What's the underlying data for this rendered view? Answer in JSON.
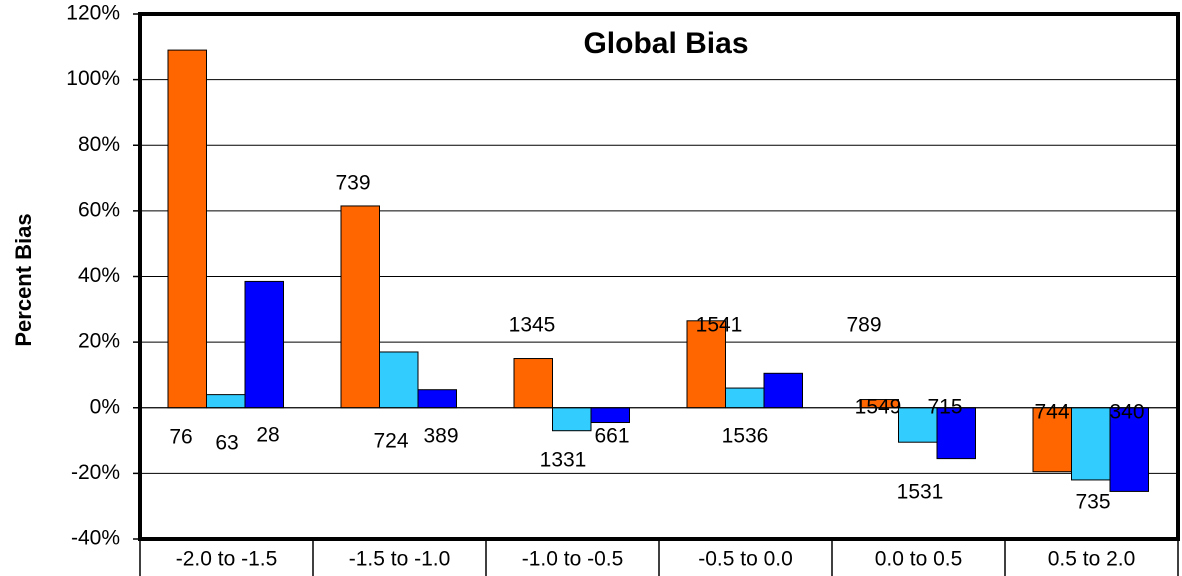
{
  "chart_data": {
    "type": "bar",
    "title": "Global Bias",
    "y_label": "Percent Bias",
    "categories": [
      "-2.0 to -1.5",
      "-1.5 to -1.0",
      "-1.0 to -0.5",
      "-0.5 to 0.0",
      "0.0 to 0.5",
      "0.5 to 2.0"
    ],
    "series": [
      {
        "color": "#ff6600",
        "values": [
          109,
          61.5,
          15,
          26.5,
          2.5,
          -19.5
        ],
        "point_labels": [
          "76",
          "739",
          "1345",
          "1541",
          "1549",
          "744"
        ]
      },
      {
        "color": "#33ccff",
        "values": [
          4,
          17,
          -7,
          6,
          -10.5,
          -22
        ],
        "point_labels": [
          "63",
          "724",
          "1331",
          "1536",
          "1531",
          "735"
        ]
      },
      {
        "color": "#0000ff",
        "values": [
          38.5,
          5.5,
          -4.5,
          10.5,
          -15.5,
          -25.5
        ],
        "point_labels": [
          "28",
          "389",
          "661",
          "789",
          "715",
          "340"
        ]
      }
    ],
    "ylim": [
      -40,
      120
    ],
    "yticks": [
      {
        "value": -40,
        "label": "-40%"
      },
      {
        "value": -20,
        "label": "-20%"
      },
      {
        "value": 0,
        "label": "0%"
      },
      {
        "value": 20,
        "label": "20%"
      },
      {
        "value": 40,
        "label": "40%"
      },
      {
        "value": 60,
        "label": "60%"
      },
      {
        "value": 80,
        "label": "80%"
      },
      {
        "value": 100,
        "label": "100%"
      },
      {
        "value": 120,
        "label": "120%"
      }
    ],
    "grid": true
  }
}
